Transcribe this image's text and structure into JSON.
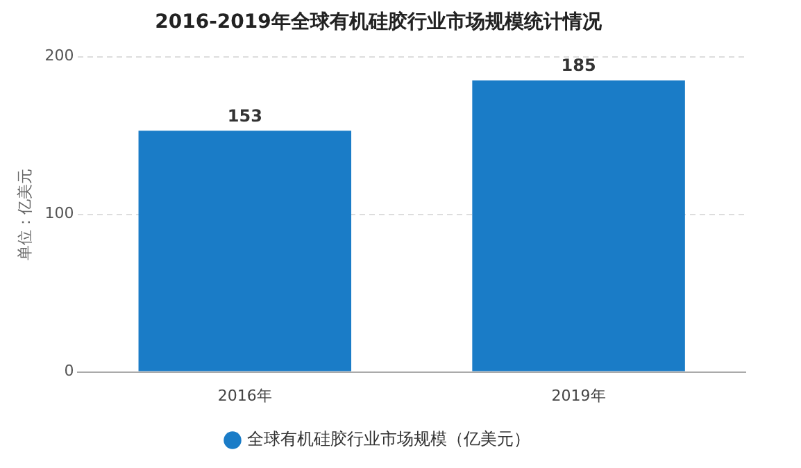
{
  "chart_data": {
    "type": "bar",
    "title": "2016-2019年全球有机硅胶行业市场规模统计情况",
    "ylabel": "单位：亿美元",
    "categories": [
      "2016年",
      "2019年"
    ],
    "series": [
      {
        "name": "全球有机硅胶行业市场规模（亿美元）",
        "color": "#1a7cc7",
        "values": [
          153,
          185
        ]
      }
    ],
    "ylim": [
      0,
      200
    ],
    "yticks": [
      0,
      100,
      200
    ],
    "grid": "y",
    "legend": "bottom",
    "data_labels": true
  }
}
